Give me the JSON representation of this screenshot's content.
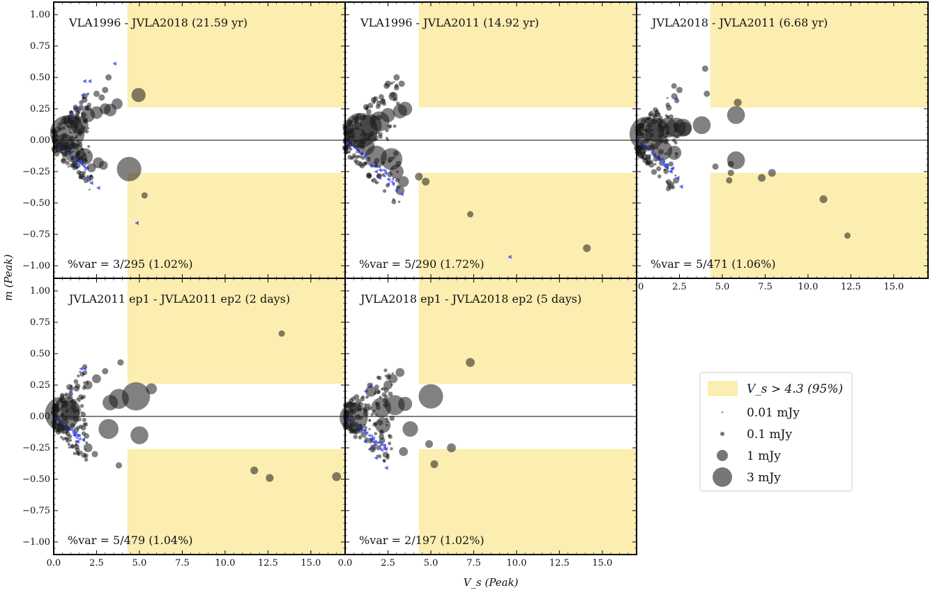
{
  "figure": {
    "xlabel": "V_s (Peak)",
    "ylabel": "m (Peak)"
  },
  "legend": {
    "region_label": "V_s > 4.3 (95%)",
    "size_labels": [
      "0.01 mJy",
      "0.1 mJy",
      "1 mJy",
      "3 mJy"
    ]
  },
  "colors": {
    "region": "#fbeeb0",
    "point": "#1a1a1a",
    "limit_marker": "#3344ee",
    "zero_line": "#000000"
  },
  "chart_data": [
    {
      "type": "scatter",
      "title": "VLA1996 - JVLA2018 (21.59 yr)",
      "annotation": "%var = 3/295 (1.02%)",
      "xlim": [
        0,
        17
      ],
      "ylim": [
        -1.1,
        1.1
      ],
      "threshold": {
        "vs": 4.3,
        "m": 0.26
      },
      "cluster": {
        "side": "both",
        "xmax": 2.2,
        "mmax": 0.33
      },
      "series": [
        {
          "points": [
            [
              0.8,
              0.06,
              3
            ],
            [
              1.2,
              -0.1,
              1
            ],
            [
              1.5,
              0.12,
              0.8
            ],
            [
              1.8,
              -0.13,
              0.7
            ],
            [
              2.0,
              0.2,
              0.5
            ],
            [
              2.5,
              0.22,
              0.4
            ],
            [
              3.0,
              0.25,
              0.3
            ],
            [
              3.3,
              0.24,
              0.4
            ],
            [
              3.7,
              0.29,
              0.3
            ],
            [
              2.6,
              -0.18,
              0.3
            ],
            [
              2.2,
              -0.22,
              0.2
            ],
            [
              2.5,
              0.37,
              0.1
            ],
            [
              3.0,
              0.4,
              0.1
            ],
            [
              3.2,
              0.5,
              0.1
            ],
            [
              2.8,
              0.34,
              0.1
            ],
            [
              2.9,
              -0.2,
              0.2
            ],
            [
              1.0,
              0.15,
              0.5
            ],
            [
              0.6,
              -0.03,
              1
            ],
            [
              4.95,
              0.36,
              0.5
            ],
            [
              4.4,
              -0.23,
              1.5
            ],
            [
              5.3,
              -0.44,
              0.1
            ]
          ]
        },
        {
          "name": "",
          "limits": [
            [
              1.8,
              0.47
            ],
            [
              2.1,
              0.47
            ],
            [
              3.55,
              0.61
            ],
            [
              1.9,
              -0.3
            ],
            [
              2.2,
              -0.34
            ],
            [
              2.6,
              -0.38
            ],
            [
              4.85,
              -0.66
            ],
            [
              1.3,
              -0.2
            ],
            [
              1.5,
              -0.17
            ],
            [
              1.7,
              0.36
            ],
            [
              1.5,
              0.25
            ],
            [
              1.1,
              0.2
            ]
          ]
        }
      ]
    },
    {
      "type": "scatter",
      "title": "VLA1996 - JVLA2011 (14.92 yr)",
      "annotation": "%var = 5/290 (1.72%)",
      "xlim": [
        0,
        17
      ],
      "ylim": [
        -1.1,
        1.1
      ],
      "threshold": {
        "vs": 4.3,
        "m": 0.26
      },
      "cluster": {
        "side": "both",
        "xmax": 3.2,
        "mmax": 0.45
      },
      "series": [
        {
          "points": [
            [
              0.9,
              0.08,
              3
            ],
            [
              1.5,
              0.12,
              1.2
            ],
            [
              2.0,
              0.15,
              1
            ],
            [
              1.8,
              -0.13,
              1.2
            ],
            [
              2.7,
              -0.15,
              1.2
            ],
            [
              3.2,
              0.23,
              0.5
            ],
            [
              3.5,
              0.25,
              0.5
            ],
            [
              2.5,
              0.2,
              0.5
            ],
            [
              3.0,
              -0.25,
              0.5
            ],
            [
              3.4,
              -0.33,
              0.3
            ],
            [
              2.5,
              0.45,
              0.1
            ],
            [
              3.0,
              0.5,
              0.1
            ],
            [
              3.3,
              0.45,
              0.1
            ],
            [
              2.8,
              0.35,
              0.2
            ],
            [
              3.2,
              -0.4,
              0.2
            ],
            [
              1.2,
              -0.05,
              0.8
            ],
            [
              0.7,
              0.02,
              1
            ],
            [
              4.3,
              -0.29,
              0.15
            ],
            [
              4.7,
              -0.33,
              0.15
            ],
            [
              7.3,
              -0.59,
              0.1
            ],
            [
              14.1,
              -0.86,
              0.15
            ]
          ]
        },
        {
          "name": "",
          "limits": [
            [
              2.0,
              -0.3
            ],
            [
              2.5,
              -0.35
            ],
            [
              3.0,
              -0.4
            ],
            [
              3.3,
              -0.43
            ],
            [
              1.5,
              -0.2
            ],
            [
              1.8,
              -0.25
            ],
            [
              9.6,
              -0.93
            ],
            [
              1.2,
              -0.12
            ]
          ]
        }
      ]
    },
    {
      "type": "scatter",
      "title": "JVLA2018 - JVLA2011 (6.68 yr)",
      "annotation": "%var = 5/471 (1.06%)",
      "xlim": [
        0,
        17
      ],
      "ylim": [
        -1.1,
        1.1
      ],
      "threshold": {
        "vs": 4.3,
        "m": 0.26
      },
      "cluster": {
        "side": "both",
        "xmax": 2.4,
        "mmax": 0.38
      },
      "series": [
        {
          "points": [
            [
              0.6,
              0.05,
              3
            ],
            [
              1.2,
              0.08,
              1.5
            ],
            [
              1.8,
              0.1,
              1
            ],
            [
              2.3,
              0.1,
              1
            ],
            [
              2.7,
              0.1,
              0.8
            ],
            [
              3.8,
              0.12,
              0.8
            ],
            [
              1.5,
              -0.08,
              1
            ],
            [
              2.2,
              -0.1,
              0.5
            ],
            [
              2.8,
              0.09,
              0.5
            ],
            [
              5.8,
              0.2,
              0.8
            ],
            [
              5.8,
              -0.16,
              0.8
            ],
            [
              5.9,
              0.3,
              0.15
            ],
            [
              4.1,
              0.37,
              0.1
            ],
            [
              4.0,
              0.57,
              0.1
            ],
            [
              2.2,
              0.35,
              0.1
            ],
            [
              2.5,
              0.4,
              0.1
            ],
            [
              5.5,
              -0.19,
              0.1
            ],
            [
              5.5,
              -0.26,
              0.1
            ],
            [
              5.4,
              -0.32,
              0.1
            ],
            [
              4.6,
              -0.21,
              0.1
            ],
            [
              7.3,
              -0.3,
              0.15
            ],
            [
              7.9,
              -0.26,
              0.15
            ],
            [
              10.9,
              -0.47,
              0.15
            ],
            [
              12.3,
              -0.76,
              0.1
            ]
          ]
        },
        {
          "name": "",
          "limits": [
            [
              2.0,
              -0.25
            ],
            [
              2.4,
              -0.3
            ],
            [
              2.6,
              -0.37
            ],
            [
              1.6,
              -0.2
            ],
            [
              2.3,
              0.33
            ]
          ]
        }
      ]
    },
    {
      "type": "scatter",
      "title": "JVLA2011 ep1 - JVLA2011 ep2 (2 days)",
      "annotation": "%var = 5/479 (1.04%)",
      "xlim": [
        0,
        17
      ],
      "ylim": [
        -1.1,
        1.1
      ],
      "threshold": {
        "vs": 4.3,
        "m": 0.26
      },
      "cluster": {
        "side": "both",
        "xmax": 2.0,
        "mmax": 0.35
      },
      "series": [
        {
          "points": [
            [
              0.5,
              0.02,
              3
            ],
            [
              1.0,
              0.05,
              1
            ],
            [
              3.8,
              0.14,
              1
            ],
            [
              4.8,
              0.16,
              2
            ],
            [
              3.2,
              -0.1,
              1
            ],
            [
              5.0,
              -0.15,
              0.8
            ],
            [
              3.3,
              0.11,
              0.6
            ],
            [
              5.7,
              0.22,
              0.3
            ],
            [
              2.0,
              0.25,
              0.2
            ],
            [
              2.5,
              0.3,
              0.2
            ],
            [
              3.0,
              0.36,
              0.1
            ],
            [
              3.9,
              0.43,
              0.1
            ],
            [
              3.8,
              -0.39,
              0.1
            ],
            [
              2.0,
              -0.25,
              0.2
            ],
            [
              2.4,
              -0.3,
              0.1
            ],
            [
              13.3,
              0.66,
              0.1
            ],
            [
              11.7,
              -0.43,
              0.15
            ],
            [
              12.6,
              -0.49,
              0.15
            ],
            [
              16.5,
              -0.48,
              0.2
            ]
          ]
        },
        {
          "name": "",
          "limits": [
            [
              1.6,
              0.38
            ],
            [
              1.8,
              0.38
            ],
            [
              1.2,
              -0.15
            ],
            [
              1.4,
              -0.2
            ],
            [
              1.0,
              0.2
            ]
          ]
        }
      ]
    },
    {
      "type": "scatter",
      "title": "JVLA2018 ep1 - JVLA2018 ep2 (5 days)",
      "annotation": "%var = 2/197 (1.02%)",
      "xlim": [
        0,
        17
      ],
      "ylim": [
        -1.1,
        1.1
      ],
      "threshold": {
        "vs": 4.3,
        "m": 0.26
      },
      "cluster": {
        "side": "both",
        "xmax": 2.8,
        "mmax": 0.35
      },
      "series": [
        {
          "points": [
            [
              0.5,
              -0.01,
              2
            ],
            [
              2.1,
              0.07,
              1
            ],
            [
              2.9,
              0.09,
              1
            ],
            [
              5.0,
              0.16,
              1.5
            ],
            [
              3.5,
              0.1,
              0.5
            ],
            [
              3.8,
              -0.1,
              0.6
            ],
            [
              2.2,
              -0.07,
              0.6
            ],
            [
              6.2,
              -0.25,
              0.2
            ],
            [
              5.2,
              -0.38,
              0.15
            ],
            [
              4.9,
              -0.22,
              0.15
            ],
            [
              7.3,
              0.43,
              0.2
            ],
            [
              2.8,
              0.3,
              0.2
            ],
            [
              3.2,
              0.35,
              0.2
            ],
            [
              2.5,
              0.25,
              0.2
            ],
            [
              3.4,
              -0.28,
              0.2
            ],
            [
              1.5,
              0.2,
              0.3
            ]
          ]
        },
        {
          "name": "",
          "limits": [
            [
              1.2,
              -0.2
            ],
            [
              1.6,
              -0.25
            ],
            [
              1.8,
              -0.33
            ],
            [
              2.4,
              -0.41
            ],
            [
              1.2,
              0.2
            ],
            [
              1.5,
              0.25
            ]
          ]
        }
      ]
    }
  ]
}
